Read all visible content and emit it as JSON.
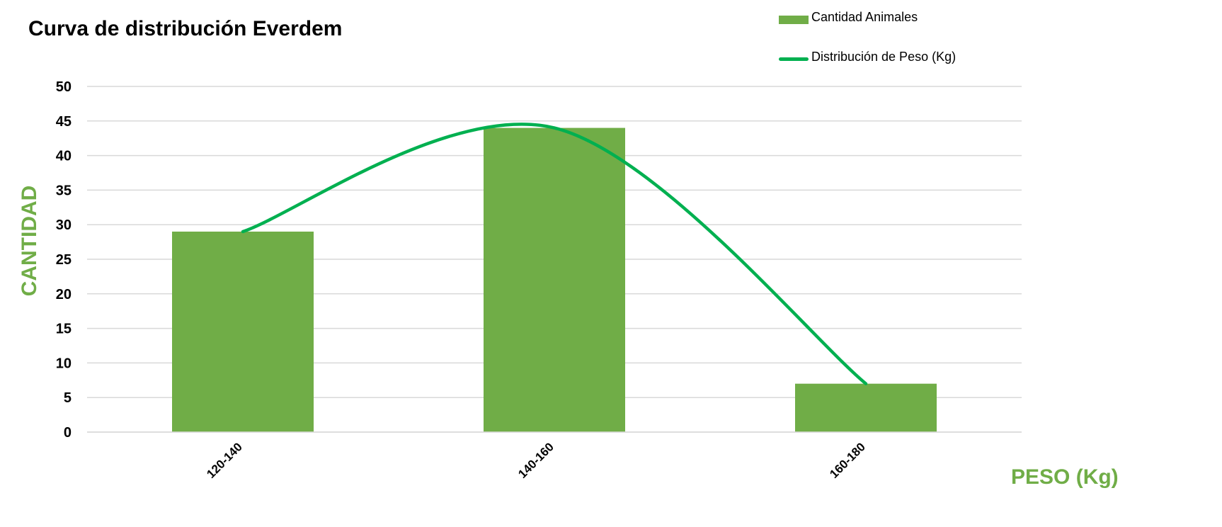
{
  "colors": {
    "bar": "#70ad47",
    "line": "#00b050",
    "axis_title": "#70ad47",
    "grid": "#d9d9d9",
    "text": "#000000"
  },
  "chart_data": {
    "type": "bar",
    "title": "Curva de distribución Everdem",
    "xlabel": "PESO (Kg)",
    "ylabel": "CANTIDAD",
    "categories": [
      "120-140",
      "140-160",
      "160-180"
    ],
    "series": [
      {
        "name": "Cantidad Animales",
        "type": "bar",
        "values": [
          29,
          44,
          7
        ]
      },
      {
        "name": "Distribución de Peso (Kg)",
        "type": "line",
        "smooth": true,
        "values": [
          29,
          44,
          7
        ]
      }
    ],
    "ylim": [
      0,
      50
    ],
    "yticks": [
      0,
      5,
      10,
      15,
      20,
      25,
      30,
      35,
      40,
      45,
      50
    ],
    "grid": true,
    "legend_position": "top-right"
  }
}
